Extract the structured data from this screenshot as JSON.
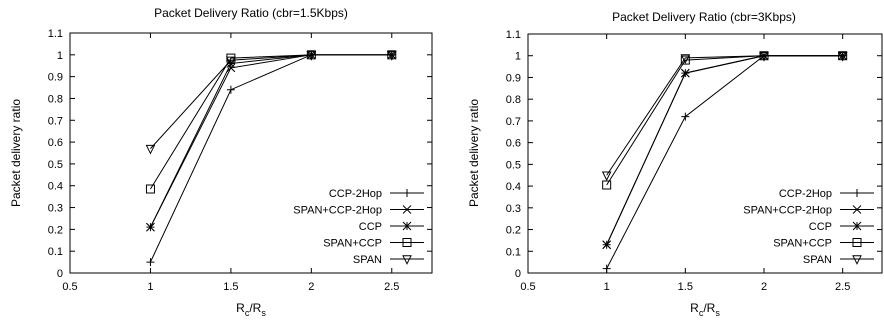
{
  "chart_data": [
    {
      "type": "line",
      "title": "Packet Delivery Ratio (cbr=1.5Kbps)",
      "ylabel": "Packet delivery ratio",
      "xlabel": {
        "main": "R",
        "sub1": "c",
        "sep": "/R",
        "sub2": "s"
      },
      "xlim": [
        0.5,
        2.75
      ],
      "ylim": [
        0,
        1.1
      ],
      "xticks": [
        0.5,
        1,
        1.5,
        2,
        2.5
      ],
      "xtick_labels": [
        "0.5",
        "1",
        "1.5",
        "2",
        "2.5"
      ],
      "yticks": [
        0,
        0.1,
        0.2,
        0.3,
        0.4,
        0.5,
        0.6,
        0.7,
        0.8,
        0.9,
        1,
        1.1
      ],
      "ytick_labels": [
        "0",
        "0.1",
        "0.2",
        "0.3",
        "0.4",
        "0.5",
        "0.6",
        "0.7",
        "0.8",
        "0.9",
        "1",
        "1.1"
      ],
      "grid": false,
      "legend_position": "bottom-right",
      "x": [
        1,
        1.5,
        2,
        2.5
      ],
      "series": [
        {
          "name": "CCP-2Hop",
          "marker": "plus",
          "values": [
            0.05,
            0.84,
            1.0,
            1.0
          ]
        },
        {
          "name": "SPAN+CCP-2Hop",
          "marker": "cross",
          "values": [
            0.21,
            0.94,
            1.0,
            1.0
          ]
        },
        {
          "name": "CCP",
          "marker": "star",
          "values": [
            0.21,
            0.96,
            1.0,
            1.0
          ]
        },
        {
          "name": "SPAN+CCP",
          "marker": "square",
          "values": [
            0.385,
            0.985,
            1.0,
            1.0
          ]
        },
        {
          "name": "SPAN",
          "marker": "triangle-down",
          "values": [
            0.57,
            0.975,
            1.0,
            1.0
          ]
        }
      ]
    },
    {
      "type": "line",
      "title": "Packet Delivery Ratio (cbr=3Kbps)",
      "ylabel": "Packet delivery ratio",
      "xlabel": {
        "main": "R",
        "sub1": "c",
        "sep": "/R",
        "sub2": "s"
      },
      "xlim": [
        0.5,
        2.75
      ],
      "ylim": [
        0,
        1.1
      ],
      "xticks": [
        0.5,
        1,
        1.5,
        2,
        2.5
      ],
      "xtick_labels": [
        "0.5",
        "1",
        "1.5",
        "2",
        "2.5"
      ],
      "yticks": [
        0,
        0.1,
        0.2,
        0.3,
        0.4,
        0.5,
        0.6,
        0.7,
        0.8,
        0.9,
        1,
        1.1
      ],
      "ytick_labels": [
        "0",
        "0.1",
        "0.2",
        "0.3",
        "0.4",
        "0.5",
        "0.6",
        "0.7",
        "0.8",
        "0.9",
        "1",
        "1.1"
      ],
      "grid": false,
      "legend_position": "bottom-right",
      "x": [
        1,
        1.5,
        2,
        2.5
      ],
      "series": [
        {
          "name": "CCP-2Hop",
          "marker": "plus",
          "values": [
            0.02,
            0.72,
            1.0,
            1.0
          ]
        },
        {
          "name": "SPAN+CCP-2Hop",
          "marker": "cross",
          "values": [
            0.13,
            0.92,
            1.0,
            1.0
          ]
        },
        {
          "name": "CCP",
          "marker": "star",
          "values": [
            0.13,
            0.92,
            1.0,
            1.0
          ]
        },
        {
          "name": "SPAN+CCP",
          "marker": "square",
          "values": [
            0.405,
            0.98,
            1.0,
            1.0
          ]
        },
        {
          "name": "SPAN",
          "marker": "triangle-down",
          "values": [
            0.45,
            0.99,
            1.0,
            1.0
          ]
        }
      ]
    }
  ]
}
